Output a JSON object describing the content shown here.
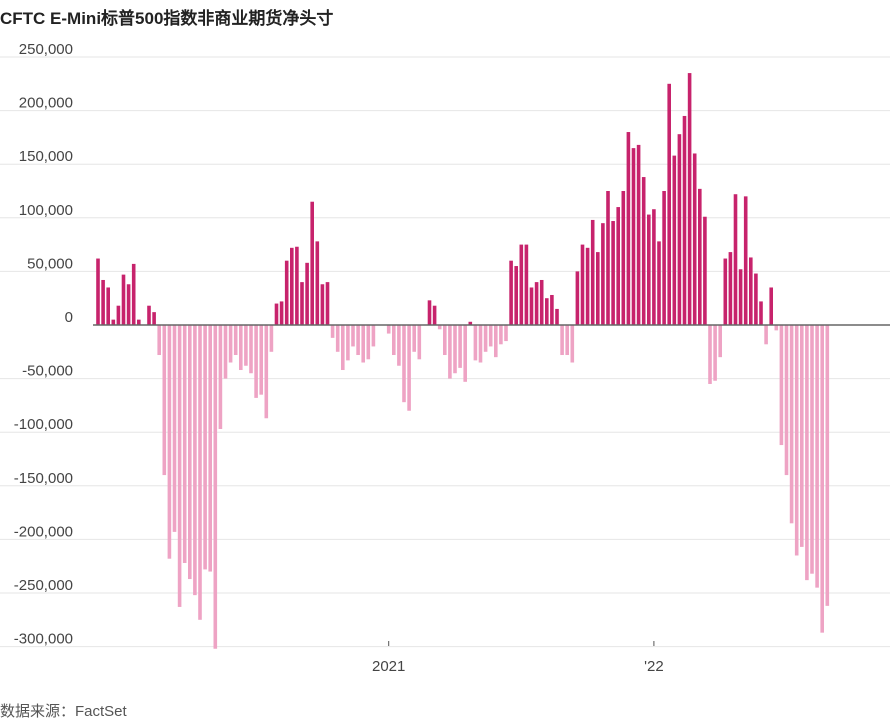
{
  "title": "CFTC E-Mini标普500指数非商业期货净头寸",
  "source": "数据来源：FactSet",
  "colors": {
    "positive": "#c7236c",
    "negative": "#eea3c4",
    "grid": "#e6e6e6",
    "zero_line": "#666666",
    "text": "#444444"
  },
  "chart_data": {
    "type": "bar",
    "title": "CFTC E-Mini标普500指数非商业期货净头寸",
    "xlabel": "",
    "ylabel": "",
    "ylim": [
      -310000,
      260000
    ],
    "yticks": [
      250000,
      200000,
      150000,
      100000,
      50000,
      0,
      -50000,
      -100000,
      -150000,
      -200000,
      -250000,
      -300000
    ],
    "ytick_labels": [
      "250,000",
      "200,000",
      "150,000",
      "100,000",
      "50,000",
      "0",
      "-50,000",
      "-100,000",
      "-150,000",
      "-200,000",
      "-250,000",
      "-300,000"
    ],
    "xticks": [
      {
        "label": "2021",
        "index": 57
      },
      {
        "label": "'22",
        "index": 109
      }
    ],
    "grid": true,
    "legend": "none",
    "values": [
      62000,
      42000,
      35000,
      5000,
      18000,
      47000,
      38000,
      57000,
      5000,
      0,
      18000,
      12000,
      -28000,
      -140000,
      -218000,
      -193000,
      -263000,
      -222000,
      -237000,
      -252000,
      -275000,
      -228000,
      -230000,
      -302000,
      -97000,
      -50000,
      -35000,
      -28000,
      -42000,
      -38000,
      -45000,
      -68000,
      -65000,
      -87000,
      -25000,
      20000,
      22000,
      60000,
      72000,
      73000,
      40000,
      58000,
      115000,
      78000,
      38000,
      40000,
      -12000,
      -25000,
      -42000,
      -33000,
      -20000,
      -28000,
      -35000,
      -32000,
      -20000,
      0,
      0,
      -8000,
      -28000,
      -38000,
      -72000,
      -80000,
      -25000,
      -32000,
      0,
      23000,
      18000,
      -4000,
      -28000,
      -50000,
      -45000,
      -40000,
      -53000,
      3000,
      -33000,
      -35000,
      -25000,
      -20000,
      -30000,
      -18000,
      -15000,
      60000,
      55000,
      75000,
      75000,
      35000,
      40000,
      42000,
      25000,
      28000,
      15000,
      -28000,
      -28000,
      -35000,
      50000,
      75000,
      72000,
      98000,
      68000,
      95000,
      125000,
      97000,
      110000,
      125000,
      180000,
      165000,
      168000,
      138000,
      103000,
      108000,
      78000,
      125000,
      225000,
      158000,
      178000,
      195000,
      235000,
      160000,
      127000,
      101000,
      -55000,
      -52000,
      -30000,
      62000,
      68000,
      122000,
      52000,
      120000,
      63000,
      48000,
      22000,
      -18000,
      35000,
      -5000,
      -112000,
      -140000,
      -185000,
      -215000,
      -207000,
      -238000,
      -232000,
      -245000,
      -287000,
      -262000
    ]
  }
}
